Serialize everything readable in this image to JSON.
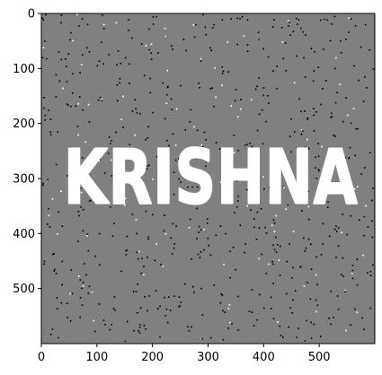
{
  "chart_data": {
    "type": "image",
    "title": "",
    "xlabel": "",
    "ylabel": "",
    "image_width": 600,
    "image_height": 600,
    "xlim": [
      0,
      600
    ],
    "ylim": [
      600,
      0
    ],
    "x_ticks": [
      0,
      100,
      200,
      300,
      400,
      500
    ],
    "y_ticks": [
      0,
      100,
      200,
      300,
      400,
      500
    ],
    "x_tick_labels": [
      "0",
      "100",
      "200",
      "300",
      "400",
      "500"
    ],
    "y_tick_labels": [
      "0",
      "100",
      "200",
      "300",
      "400",
      "500"
    ],
    "text": "KRISHNA",
    "text_extent": {
      "x0": 40,
      "x1": 570,
      "y0": 245,
      "y1": 345
    },
    "background_gray": 128,
    "noise": "salt-and-pepper",
    "noise_density": 0.004
  },
  "colors": {
    "background": "#808080",
    "text": "#ffffff",
    "noise_dark": "#000000",
    "noise_light": "#ffffff",
    "axes": "#000000"
  }
}
